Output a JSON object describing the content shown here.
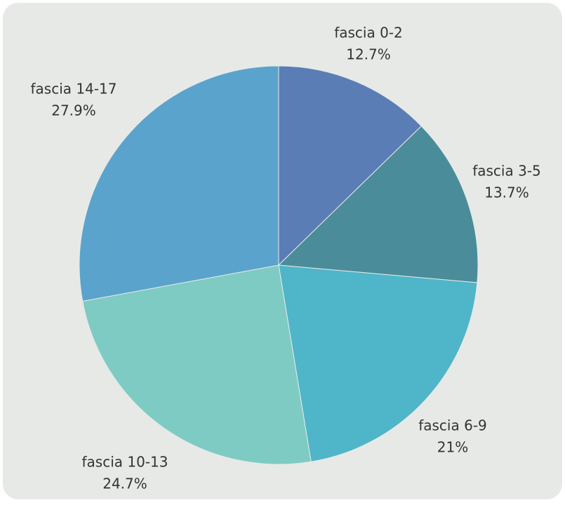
{
  "chart_data": {
    "type": "pie",
    "categories": [
      "fascia 0-2",
      "fascia 3-5",
      "fascia 6-9",
      "fascia 10-13",
      "fascia 14-17"
    ],
    "values": [
      12.7,
      13.7,
      21,
      24.7,
      27.9
    ],
    "value_labels": [
      "12.7%",
      "13.7%",
      "21%",
      "24.7%",
      "27.9%"
    ],
    "colors": [
      "#5b7db5",
      "#4a8c9a",
      "#4fb5c9",
      "#7ecbc4",
      "#5aa3cc"
    ]
  }
}
